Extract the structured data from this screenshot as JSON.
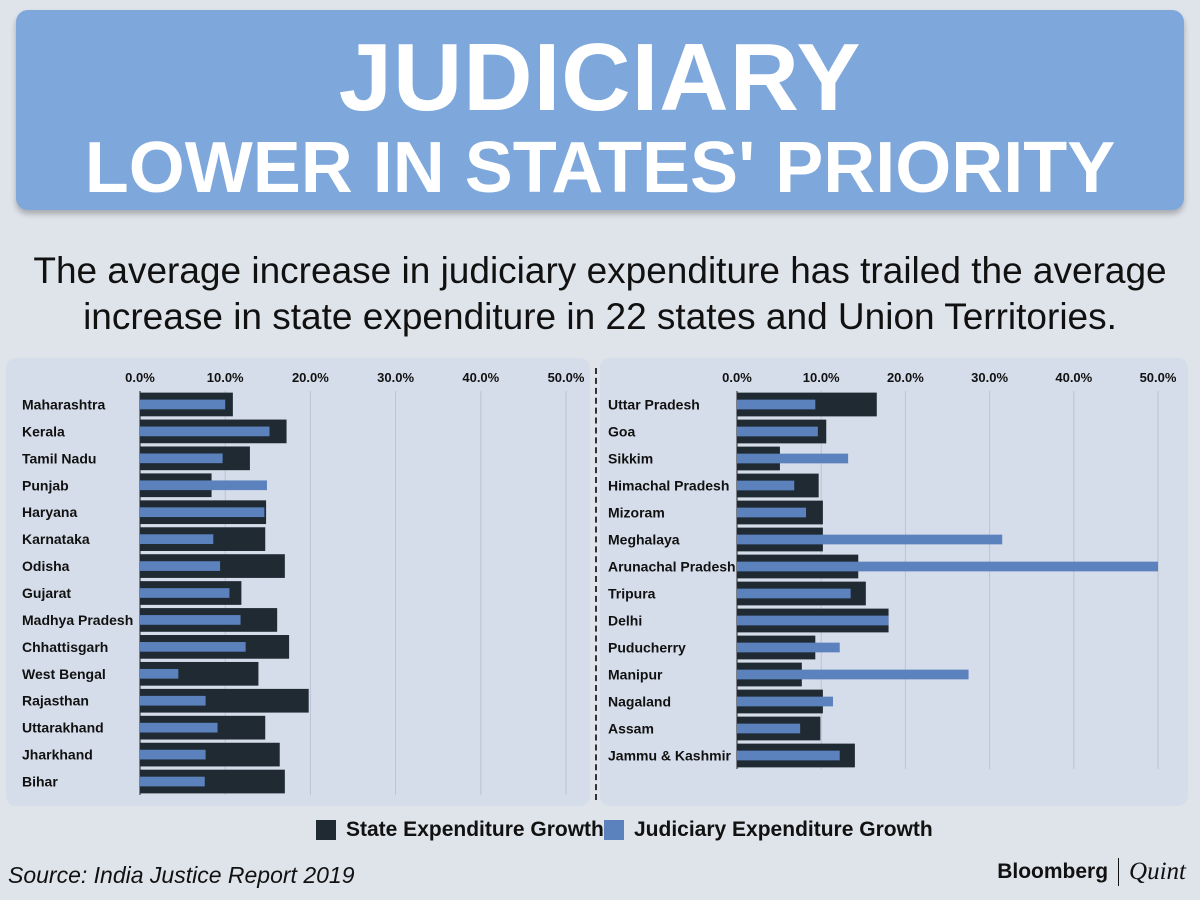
{
  "header": {
    "title_line1": "JUDICIARY",
    "title_line2": "LOWER IN STATES' PRIORITY"
  },
  "subtitle_line1": "The average increase in judiciary expenditure has trailed the average",
  "subtitle_line2": "increase in state expenditure in 22 states and Union Territories.",
  "legend": {
    "state": "State Expenditure Growth",
    "judiciary": "Judiciary Expenditure Growth"
  },
  "source": "Source: India Justice Report 2019",
  "brand": {
    "name": "Bloomberg",
    "partner": "Quint"
  },
  "colors": {
    "state": "#1f2a33",
    "judiciary": "#5b82bd"
  },
  "chart_data": [
    {
      "type": "bar",
      "orientation": "horizontal",
      "tick_labels": [
        "0.0%",
        "10.0%",
        "20.0%",
        "30.0%",
        "40.0%",
        "50.0%"
      ],
      "xlim": [
        0,
        50
      ],
      "grid": true,
      "categories": [
        "Maharashtra",
        "Kerala",
        "Tamil Nadu",
        "Punjab",
        "Haryana",
        "Karnataka",
        "Odisha",
        "Gujarat",
        "Madhya Pradesh",
        "Chhattisgarh",
        "West Bengal",
        "Rajasthan",
        "Uttarakhand",
        "Jharkhand",
        "Bihar"
      ],
      "series": [
        {
          "name": "State Expenditure Growth",
          "values": [
            10.9,
            17.2,
            12.9,
            8.4,
            14.8,
            14.7,
            17.0,
            11.9,
            16.1,
            17.5,
            13.9,
            19.8,
            14.7,
            16.4,
            17.0
          ]
        },
        {
          "name": "Judiciary Expenditure Growth",
          "values": [
            10.0,
            15.2,
            9.7,
            14.9,
            14.6,
            8.6,
            9.4,
            10.5,
            11.8,
            12.4,
            4.5,
            7.7,
            9.1,
            7.7,
            7.6
          ]
        }
      ]
    },
    {
      "type": "bar",
      "orientation": "horizontal",
      "tick_labels": [
        "0.0%",
        "10.0%",
        "20.0%",
        "30.0%",
        "40.0%",
        "50.0%"
      ],
      "xlim": [
        0,
        50
      ],
      "grid": true,
      "categories": [
        "Uttar Pradesh",
        "Goa",
        "Sikkim",
        "Himachal Pradesh",
        "Mizoram",
        "Meghalaya",
        "Arunachal Pradesh",
        "Tripura",
        "Delhi",
        "Puducherry",
        "Manipur",
        "Nagaland",
        "Assam",
        "Jammu & Kashmir"
      ],
      "series": [
        {
          "name": "State Expenditure Growth",
          "values": [
            16.6,
            10.6,
            5.1,
            9.7,
            10.2,
            10.2,
            14.4,
            15.3,
            18.0,
            9.3,
            7.7,
            10.2,
            9.9,
            14.0
          ]
        },
        {
          "name": "Judiciary Expenditure Growth",
          "values": [
            9.3,
            9.6,
            13.2,
            6.8,
            8.2,
            31.5,
            50.0,
            13.5,
            18.0,
            12.2,
            27.5,
            11.4,
            7.5,
            12.2
          ]
        }
      ]
    }
  ]
}
